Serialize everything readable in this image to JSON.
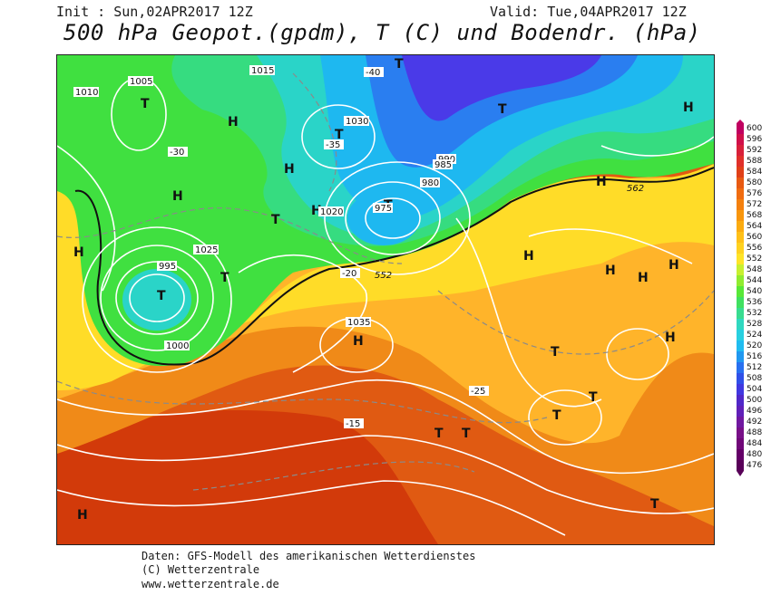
{
  "header": {
    "init": "Init : Sun,02APR2017 12Z",
    "valid": "Valid: Tue,04APR2017 12Z",
    "title": "500 hPa Geopot.(gpdm), T (C) und Bodendr. (hPa)"
  },
  "footer": {
    "line1": "Daten: GFS-Modell des amerikanischen Wetterdienstes",
    "line2": "(C) Wetterzentrale",
    "line3": "www.wetterzentrale.de"
  },
  "colors": {
    "c476": "#5a0060",
    "c520": "#2ad0f0",
    "c528": "#30d6b0",
    "c536": "#38e070",
    "c544": "#40e040",
    "c552": "#ffe020",
    "c560": "#ffb020",
    "c568": "#f08010",
    "c576": "#e05010",
    "c584": "#d02808",
    "c600": "#c00040"
  },
  "legend": {
    "values": [
      "600",
      "596",
      "592",
      "588",
      "584",
      "580",
      "576",
      "572",
      "568",
      "564",
      "560",
      "556",
      "552",
      "548",
      "544",
      "540",
      "536",
      "532",
      "528",
      "524",
      "520",
      "516",
      "512",
      "508",
      "504",
      "500",
      "496",
      "492",
      "488",
      "484",
      "480",
      "476"
    ]
  },
  "pressure_systems": [
    {
      "kind": "H"
    },
    {
      "kind": "H"
    },
    {
      "kind": "H"
    },
    {
      "kind": "H"
    },
    {
      "kind": "H"
    },
    {
      "kind": "H"
    },
    {
      "kind": "H"
    },
    {
      "kind": "H"
    },
    {
      "kind": "H"
    },
    {
      "kind": "H"
    },
    {
      "kind": "H"
    },
    {
      "kind": "H"
    },
    {
      "kind": "H"
    },
    {
      "kind": "H"
    },
    {
      "kind": "T"
    },
    {
      "kind": "T"
    },
    {
      "kind": "T"
    },
    {
      "kind": "T"
    },
    {
      "kind": "T"
    },
    {
      "kind": "T"
    },
    {
      "kind": "T"
    },
    {
      "kind": "T"
    },
    {
      "kind": "T"
    },
    {
      "kind": "T"
    },
    {
      "kind": "T"
    },
    {
      "kind": "T"
    },
    {
      "kind": "T"
    },
    {
      "kind": "T"
    }
  ],
  "isobar_labels": [
    "1005",
    "1010",
    "1015",
    "1020",
    "1025",
    "1030",
    "1035",
    "1000",
    "995",
    "990",
    "985",
    "980",
    "975"
  ],
  "temp_labels": [
    "-40",
    "-35",
    "-30",
    "-25",
    "-20",
    "-15"
  ],
  "gpdm_labels": [
    "552",
    "562"
  ]
}
